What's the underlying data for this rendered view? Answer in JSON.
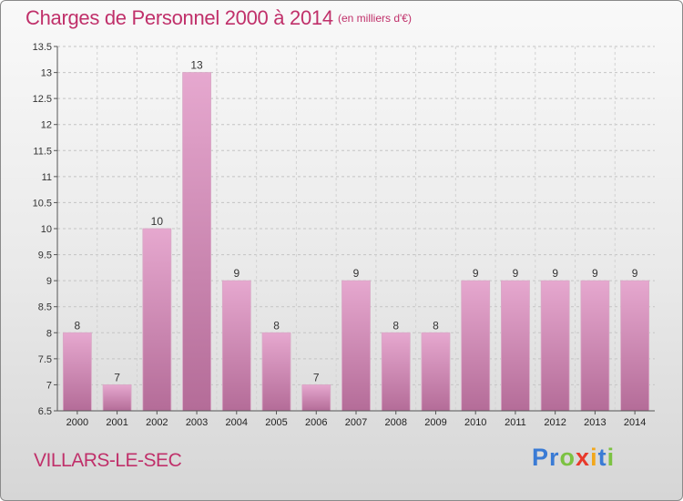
{
  "title": "Charges de Personnel 2000 à 2014",
  "unit_note": "(en milliers d'€)",
  "commune": "VILLARS-LE-SEC",
  "logo": {
    "text": "Proxiti",
    "letters": [
      {
        "ch": "P",
        "color": "#3a7bd5"
      },
      {
        "ch": "r",
        "color": "#3a7bd5"
      },
      {
        "ch": "o",
        "color": "#7cc242"
      },
      {
        "ch": "x",
        "color": "#e8392b"
      },
      {
        "ch": "i",
        "color": "#f2a81d"
      },
      {
        "ch": "t",
        "color": "#3a7bd5"
      },
      {
        "ch": "i",
        "color": "#7cc242"
      }
    ]
  },
  "colors": {
    "bar_top": "#e6a8cf",
    "bar_bottom": "#b46c98",
    "text_accent": "#c0306a"
  },
  "chart_data": {
    "type": "bar",
    "categories": [
      "2000",
      "2001",
      "2002",
      "2003",
      "2004",
      "2005",
      "2006",
      "2007",
      "2008",
      "2009",
      "2010",
      "2011",
      "2012",
      "2013",
      "2014"
    ],
    "values": [
      8,
      7,
      10,
      13,
      9,
      8,
      7,
      9,
      8,
      8,
      9,
      9,
      9,
      9,
      9
    ],
    "data_labels": [
      "8",
      "7",
      "10",
      "13",
      "9",
      "8",
      "7",
      "9",
      "8",
      "8",
      "9",
      "9",
      "9",
      "9",
      "9"
    ],
    "ylim": [
      6.5,
      13.5
    ],
    "yticks": [
      6.5,
      7,
      7.5,
      8,
      8.5,
      9,
      9.5,
      10,
      10.5,
      11,
      11.5,
      12,
      12.5,
      13,
      13.5
    ],
    "ytick_labels": [
      "6.5",
      "7",
      "7.5",
      "8",
      "8.5",
      "9",
      "9.5",
      "10",
      "10.5",
      "11",
      "11.5",
      "12",
      "12.5",
      "13",
      "13.5"
    ],
    "grid": "horizontal dashed",
    "legend": "none"
  }
}
